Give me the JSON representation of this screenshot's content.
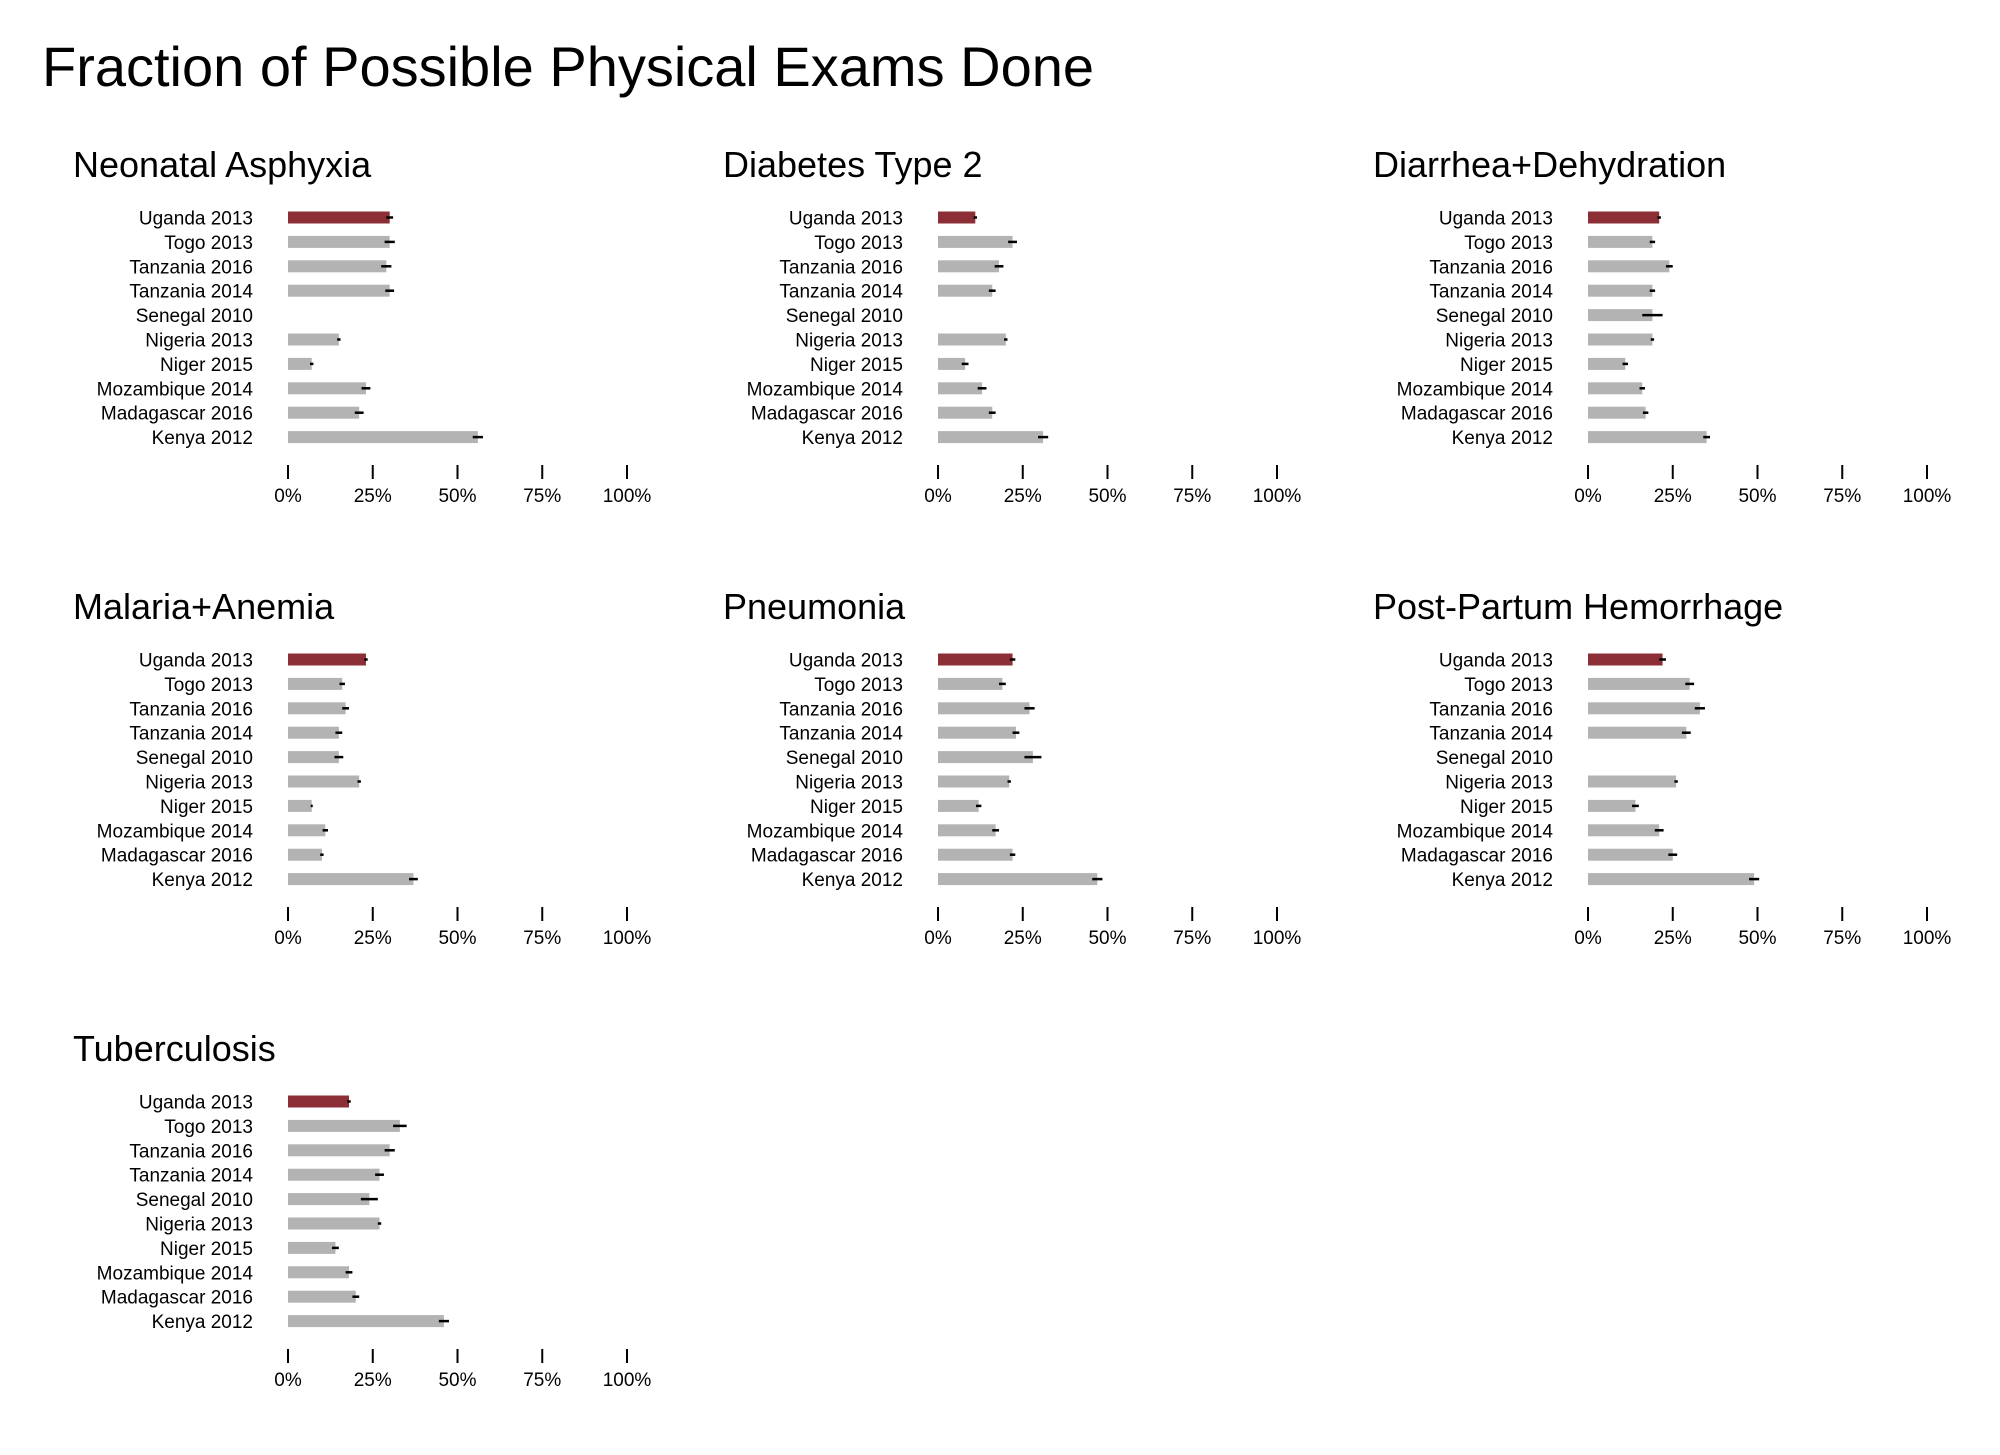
{
  "page": {
    "title": "Fraction of Possible Physical Exams Done"
  },
  "colors": {
    "highlight": "#8b2e36",
    "bar": "#b3b3b3",
    "errorbar": "#000000",
    "axis": "#000000"
  },
  "chart_data": [
    {
      "type": "bar",
      "orientation": "horizontal",
      "title": "Neonatal Asphyxia",
      "categories": [
        "Uganda 2013",
        "Togo 2013",
        "Tanzania 2016",
        "Tanzania 2014",
        "Senegal 2010",
        "Nigeria 2013",
        "Niger 2015",
        "Mozambique 2014",
        "Madagascar 2016",
        "Kenya 2012"
      ],
      "values": [
        0.3,
        0.3,
        0.29,
        0.3,
        null,
        0.15,
        0.07,
        0.23,
        0.21,
        0.56
      ],
      "error": [
        0.01,
        0.015,
        0.015,
        0.013,
        null,
        0.005,
        0.005,
        0.013,
        0.013,
        0.015
      ],
      "highlight": "Uganda 2013",
      "xlim": [
        0,
        1
      ],
      "xticks": [
        "0%",
        "25%",
        "50%",
        "75%",
        "100%"
      ],
      "grid": false
    },
    {
      "type": "bar",
      "orientation": "horizontal",
      "title": "Diabetes Type 2",
      "categories": [
        "Uganda 2013",
        "Togo 2013",
        "Tanzania 2016",
        "Tanzania 2014",
        "Senegal 2010",
        "Nigeria 2013",
        "Niger 2015",
        "Mozambique 2014",
        "Madagascar 2016",
        "Kenya 2012"
      ],
      "values": [
        0.11,
        0.22,
        0.18,
        0.16,
        null,
        0.2,
        0.08,
        0.13,
        0.16,
        0.31
      ],
      "error": [
        0.005,
        0.013,
        0.013,
        0.01,
        null,
        0.005,
        0.01,
        0.013,
        0.01,
        0.015
      ],
      "highlight": "Uganda 2013",
      "xlim": [
        0,
        1
      ],
      "xticks": [
        "0%",
        "25%",
        "50%",
        "75%",
        "100%"
      ],
      "grid": false
    },
    {
      "type": "bar",
      "orientation": "horizontal",
      "title": "Diarrhea+Dehydration",
      "categories": [
        "Uganda 2013",
        "Togo 2013",
        "Tanzania 2016",
        "Tanzania 2014",
        "Senegal 2010",
        "Nigeria 2013",
        "Niger 2015",
        "Mozambique 2014",
        "Madagascar 2016",
        "Kenya 2012"
      ],
      "values": [
        0.21,
        0.19,
        0.24,
        0.19,
        0.19,
        0.19,
        0.11,
        0.16,
        0.17,
        0.35
      ],
      "error": [
        0.005,
        0.008,
        0.01,
        0.008,
        0.03,
        0.005,
        0.008,
        0.008,
        0.008,
        0.01
      ],
      "highlight": "Uganda 2013",
      "xlim": [
        0,
        1
      ],
      "xticks": [
        "0%",
        "25%",
        "50%",
        "75%",
        "100%"
      ],
      "grid": false
    },
    {
      "type": "bar",
      "orientation": "horizontal",
      "title": "Malaria+Anemia",
      "categories": [
        "Uganda 2013",
        "Togo 2013",
        "Tanzania 2016",
        "Tanzania 2014",
        "Senegal 2010",
        "Nigeria 2013",
        "Niger 2015",
        "Mozambique 2014",
        "Madagascar 2016",
        "Kenya 2012"
      ],
      "values": [
        0.23,
        0.16,
        0.17,
        0.15,
        0.15,
        0.21,
        0.07,
        0.11,
        0.1,
        0.37
      ],
      "error": [
        0.005,
        0.008,
        0.01,
        0.01,
        0.013,
        0.005,
        0.003,
        0.008,
        0.005,
        0.013
      ],
      "highlight": "Uganda 2013",
      "xlim": [
        0,
        1
      ],
      "xticks": [
        "0%",
        "25%",
        "50%",
        "75%",
        "100%"
      ],
      "grid": false
    },
    {
      "type": "bar",
      "orientation": "horizontal",
      "title": "Pneumonia",
      "categories": [
        "Uganda 2013",
        "Togo 2013",
        "Tanzania 2016",
        "Tanzania 2014",
        "Senegal 2010",
        "Nigeria 2013",
        "Niger 2015",
        "Mozambique 2014",
        "Madagascar 2016",
        "Kenya 2012"
      ],
      "values": [
        0.22,
        0.19,
        0.27,
        0.23,
        0.28,
        0.21,
        0.12,
        0.17,
        0.22,
        0.47
      ],
      "error": [
        0.008,
        0.01,
        0.015,
        0.01,
        0.025,
        0.005,
        0.008,
        0.01,
        0.008,
        0.015
      ],
      "highlight": "Uganda 2013",
      "xlim": [
        0,
        1
      ],
      "xticks": [
        "0%",
        "25%",
        "50%",
        "75%",
        "100%"
      ],
      "grid": false
    },
    {
      "type": "bar",
      "orientation": "horizontal",
      "title": "Post-Partum Hemorrhage",
      "categories": [
        "Uganda 2013",
        "Togo 2013",
        "Tanzania 2016",
        "Tanzania 2014",
        "Senegal 2010",
        "Nigeria 2013",
        "Niger 2015",
        "Mozambique 2014",
        "Madagascar 2016",
        "Kenya 2012"
      ],
      "values": [
        0.22,
        0.3,
        0.33,
        0.29,
        null,
        0.26,
        0.14,
        0.21,
        0.25,
        0.49
      ],
      "error": [
        0.01,
        0.013,
        0.015,
        0.013,
        null,
        0.005,
        0.01,
        0.013,
        0.013,
        0.015
      ],
      "highlight": "Uganda 2013",
      "xlim": [
        0,
        1
      ],
      "xticks": [
        "0%",
        "25%",
        "50%",
        "75%",
        "100%"
      ],
      "grid": false
    },
    {
      "type": "bar",
      "orientation": "horizontal",
      "title": "Tuberculosis",
      "categories": [
        "Uganda 2013",
        "Togo 2013",
        "Tanzania 2016",
        "Tanzania 2014",
        "Senegal 2010",
        "Nigeria 2013",
        "Niger 2015",
        "Mozambique 2014",
        "Madagascar 2016",
        "Kenya 2012"
      ],
      "values": [
        0.18,
        0.33,
        0.3,
        0.27,
        0.24,
        0.27,
        0.14,
        0.18,
        0.2,
        0.46
      ],
      "error": [
        0.005,
        0.02,
        0.015,
        0.013,
        0.025,
        0.005,
        0.01,
        0.01,
        0.01,
        0.015
      ],
      "highlight": "Uganda 2013",
      "xlim": [
        0,
        1
      ],
      "xticks": [
        "0%",
        "25%",
        "50%",
        "75%",
        "100%"
      ],
      "grid": false
    }
  ]
}
